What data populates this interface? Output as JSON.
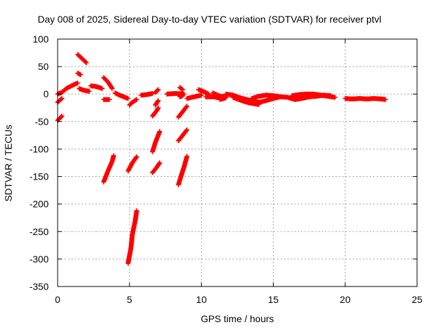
{
  "chart_data": {
    "type": "scatter",
    "title": "Day 008 of 2025, Sidereal Day-to-day VTEC variation (SDTVAR) for receiver ptvl",
    "xlabel": "GPS time / hours",
    "ylabel": "SDTVAR / TECUs",
    "xlim": [
      0,
      25
    ],
    "ylim": [
      -350,
      100
    ],
    "xticks": [
      0,
      5,
      10,
      15,
      20,
      25
    ],
    "yticks": [
      100,
      50,
      0,
      -50,
      -100,
      -150,
      -200,
      -250,
      -300,
      -350
    ],
    "grid": true,
    "marker": "plus",
    "series_color": "#ff0000",
    "segments": [
      [
        [
          0.0,
          -48
        ],
        [
          0.3,
          -40
        ]
      ],
      [
        [
          0.0,
          -15
        ],
        [
          0.3,
          -8
        ]
      ],
      [
        [
          0.0,
          0
        ],
        [
          0.3,
          3
        ],
        [
          0.6,
          10
        ],
        [
          0.9,
          14
        ],
        [
          1.2,
          18
        ],
        [
          1.4,
          20
        ]
      ],
      [
        [
          1.4,
          38
        ],
        [
          1.6,
          35
        ]
      ],
      [
        [
          1.4,
          72
        ],
        [
          1.8,
          62
        ],
        [
          2.0,
          57
        ]
      ],
      [
        [
          1.5,
          10
        ],
        [
          1.8,
          7
        ],
        [
          2.2,
          5
        ]
      ],
      [
        [
          2.3,
          15
        ],
        [
          2.6,
          14
        ],
        [
          2.9,
          12
        ],
        [
          3.1,
          10
        ]
      ],
      [
        [
          3.2,
          30
        ],
        [
          3.5,
          22
        ],
        [
          3.8,
          10
        ]
      ],
      [
        [
          3.2,
          -10
        ],
        [
          3.6,
          -10
        ]
      ],
      [
        [
          3.2,
          -160
        ],
        [
          3.5,
          -140
        ],
        [
          3.8,
          -122
        ],
        [
          3.9,
          -112
        ]
      ],
      [
        [
          4.0,
          2
        ],
        [
          4.3,
          -2
        ],
        [
          4.6,
          -5
        ],
        [
          4.9,
          -8
        ]
      ],
      [
        [
          4.9,
          -308
        ],
        [
          5.1,
          -280
        ],
        [
          5.2,
          -255
        ],
        [
          5.4,
          -230
        ],
        [
          5.5,
          -212
        ]
      ],
      [
        [
          4.9,
          -140
        ],
        [
          5.2,
          -125
        ],
        [
          5.5,
          -114
        ]
      ],
      [
        [
          5.0,
          -20
        ],
        [
          5.2,
          -15
        ],
        [
          5.5,
          -10
        ]
      ],
      [
        [
          5.8,
          -2
        ],
        [
          6.2,
          -1
        ],
        [
          6.6,
          1
        ]
      ],
      [
        [
          6.6,
          -40
        ],
        [
          6.9,
          -30
        ],
        [
          7.0,
          -25
        ]
      ],
      [
        [
          6.6,
          -105
        ],
        [
          6.8,
          -88
        ],
        [
          7.0,
          -75
        ],
        [
          7.1,
          -68
        ]
      ],
      [
        [
          6.6,
          -143
        ],
        [
          6.9,
          -133
        ],
        [
          7.1,
          -125
        ]
      ],
      [
        [
          6.8,
          -20
        ],
        [
          7.0,
          -12
        ]
      ],
      [
        [
          6.8,
          3
        ],
        [
          7.0,
          8
        ]
      ],
      [
        [
          7.6,
          0
        ],
        [
          8.2,
          1
        ],
        [
          8.8,
          0
        ]
      ],
      [
        [
          8.4,
          -165
        ],
        [
          8.6,
          -148
        ],
        [
          8.8,
          -132
        ],
        [
          9.0,
          -113
        ]
      ],
      [
        [
          8.4,
          -85
        ],
        [
          8.7,
          -75
        ],
        [
          9.0,
          -65
        ]
      ],
      [
        [
          8.4,
          -42
        ],
        [
          8.7,
          -32
        ],
        [
          9.0,
          -22
        ]
      ],
      [
        [
          8.5,
          -5
        ],
        [
          8.7,
          -3
        ]
      ],
      [
        [
          8.5,
          12
        ],
        [
          8.7,
          8
        ]
      ],
      [
        [
          9.0,
          -8
        ],
        [
          9.5,
          -5
        ],
        [
          10.0,
          -2
        ]
      ],
      [
        [
          9.8,
          8
        ],
        [
          10.2,
          4
        ],
        [
          10.5,
          0
        ]
      ],
      [
        [
          10.3,
          -5
        ],
        [
          10.9,
          -5
        ],
        [
          11.3,
          -8
        ]
      ],
      [
        [
          10.8,
          2
        ],
        [
          11.2,
          -3
        ],
        [
          11.7,
          -6
        ]
      ],
      [
        [
          11.3,
          -10
        ],
        [
          11.7,
          -7
        ]
      ],
      [
        [
          11.7,
          0
        ],
        [
          12.2,
          -2
        ],
        [
          12.6,
          -6
        ],
        [
          13.0,
          -9
        ],
        [
          13.5,
          -12
        ],
        [
          14.0,
          -15
        ],
        [
          14.5,
          -12
        ],
        [
          15.0,
          -8
        ],
        [
          15.5,
          -5
        ],
        [
          16.0,
          -6
        ],
        [
          16.5,
          -10
        ],
        [
          17.0,
          -8
        ],
        [
          17.5,
          -5
        ],
        [
          18.0,
          -4
        ],
        [
          18.5,
          -2
        ],
        [
          19.0,
          -3
        ]
      ],
      [
        [
          12.2,
          -6
        ],
        [
          12.8,
          -12
        ],
        [
          13.3,
          -16
        ],
        [
          14.0,
          -19
        ]
      ],
      [
        [
          13.5,
          -8
        ],
        [
          14.0,
          -4
        ],
        [
          14.5,
          -2
        ],
        [
          15.0,
          -3
        ],
        [
          15.5,
          -5
        ]
      ],
      [
        [
          16.3,
          -3
        ],
        [
          16.8,
          -1
        ],
        [
          17.3,
          0
        ],
        [
          17.8,
          0
        ],
        [
          18.3,
          -2
        ],
        [
          18.8,
          -4
        ],
        [
          19.3,
          -6
        ]
      ],
      [
        [
          20.0,
          -8
        ],
        [
          20.5,
          -9
        ],
        [
          21.0,
          -8
        ],
        [
          21.5,
          -9
        ],
        [
          22.0,
          -8
        ],
        [
          22.5,
          -9
        ],
        [
          22.8,
          -10
        ]
      ]
    ]
  }
}
